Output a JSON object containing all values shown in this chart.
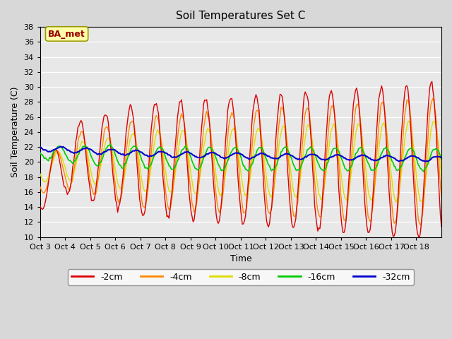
{
  "title": "Soil Temperatures Set C",
  "xlabel": "Time",
  "ylabel": "Soil Temperature (C)",
  "ylim": [
    10,
    38
  ],
  "yticks": [
    10,
    12,
    14,
    16,
    18,
    20,
    22,
    24,
    26,
    28,
    30,
    32,
    34,
    36,
    38
  ],
  "x_labels": [
    "Oct 3",
    "Oct 4",
    "Oct 5",
    "Oct 6",
    "Oct 7",
    "Oct 8",
    "Oct 9",
    "Oct 10",
    "Oct 11",
    "Oct 12",
    "Oct 13",
    "Oct 14",
    "Oct 15",
    "Oct 16",
    "Oct 17",
    "Oct 18"
  ],
  "colors": {
    "-2cm": "#dd0000",
    "-4cm": "#ff8800",
    "-8cm": "#dddd00",
    "-16cm": "#00cc00",
    "-32cm": "#0000cc"
  },
  "legend_labels": [
    "-2cm",
    "-4cm",
    "-8cm",
    "-16cm",
    "-32cm"
  ],
  "annotation_text": "BA_met",
  "annotation_bg": "#ffffaa",
  "annotation_border": "#999900",
  "plot_bg": "#e8e8e8",
  "fig_bg": "#d8d8d8",
  "n_days": 16,
  "hours_per_day": 24
}
